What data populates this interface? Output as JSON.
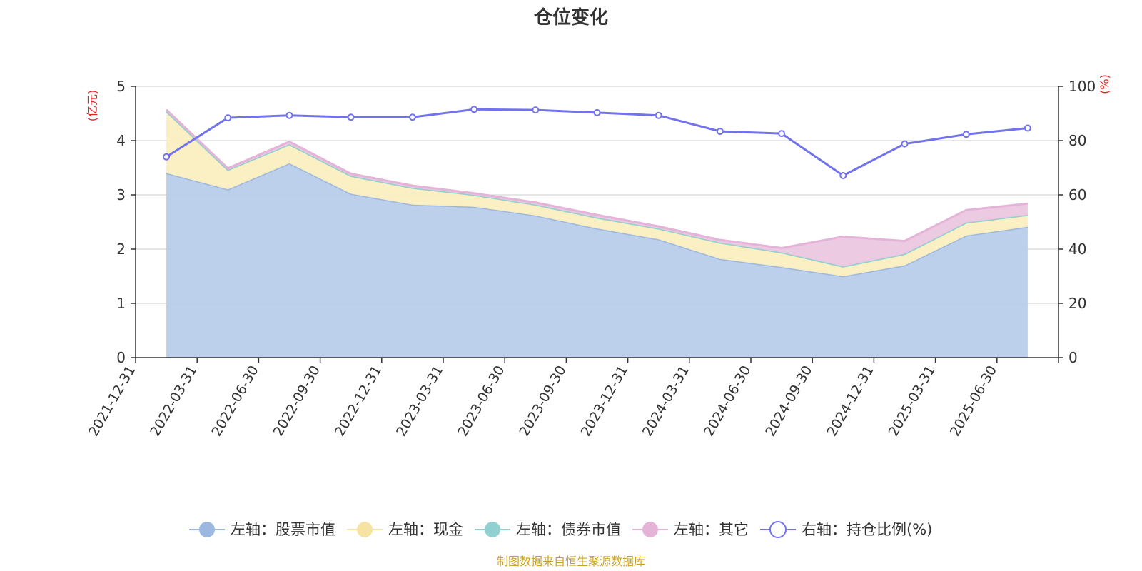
{
  "chart_data": {
    "type": "area",
    "title": "仓位变化",
    "left_unit": "(亿元)",
    "right_unit": "(%)",
    "categories": [
      "2021-12-31",
      "2022-03-31",
      "2022-06-30",
      "2022-09-30",
      "2022-12-31",
      "2023-03-31",
      "2023-06-30",
      "2023-09-30",
      "2023-12-31",
      "2024-03-31",
      "2024-06-30",
      "2024-09-30",
      "2024-12-31",
      "2025-03-31",
      "2025-06-30"
    ],
    "y_left": {
      "min": 0,
      "max": 5,
      "ticks": [
        "0",
        "1",
        "2",
        "3",
        "4",
        "5"
      ]
    },
    "y_right": {
      "min": 0,
      "max": 100,
      "ticks": [
        "0",
        "20",
        "40",
        "60",
        "80",
        "100"
      ]
    },
    "grid": true,
    "stacked": true,
    "legend_position": "bottom",
    "series": [
      {
        "name": "左轴：股票市值",
        "axis": "left",
        "type": "area",
        "color": "#9db8e0",
        "fill": "#b8cdea",
        "values": [
          3.4,
          3.1,
          3.58,
          3.02,
          2.82,
          2.78,
          2.62,
          2.38,
          2.18,
          1.82,
          1.67,
          1.5,
          1.7,
          2.25,
          2.41
        ]
      },
      {
        "name": "左轴：现金",
        "axis": "left",
        "type": "area",
        "color": "#f6e3a1",
        "fill": "#fbefc1",
        "values": [
          1.14,
          0.36,
          0.35,
          0.33,
          0.31,
          0.22,
          0.2,
          0.2,
          0.2,
          0.3,
          0.27,
          0.18,
          0.21,
          0.24,
          0.22
        ]
      },
      {
        "name": "左轴：债券市值",
        "axis": "left",
        "type": "area",
        "color": "#8fd0d0",
        "fill": "#a9dcdc",
        "values": [
          0,
          0,
          0,
          0,
          0,
          0,
          0,
          0,
          0,
          0,
          0,
          0,
          0,
          0,
          0
        ]
      },
      {
        "name": "左轴：其它",
        "axis": "left",
        "type": "area",
        "color": "#e6b3d8",
        "fill": "#ebc7e0",
        "values": [
          0.03,
          0.03,
          0.05,
          0.04,
          0.04,
          0.03,
          0.04,
          0.05,
          0.04,
          0.05,
          0.08,
          0.55,
          0.24,
          0.23,
          0.21
        ]
      },
      {
        "name": "右轴：持仓比例(%)",
        "axis": "right",
        "type": "line",
        "color": "#7272ec",
        "values": [
          74.0,
          88.4,
          89.3,
          88.6,
          88.6,
          91.5,
          91.3,
          90.3,
          89.3,
          83.4,
          82.6,
          67.1,
          78.8,
          82.3,
          84.6
        ]
      }
    ]
  },
  "source": "制图数据来自恒生聚源数据库"
}
